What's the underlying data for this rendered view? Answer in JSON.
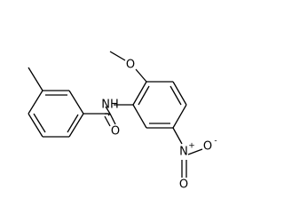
{
  "atoms": [
    {
      "label": "O"
    },
    {
      "label": "NH"
    },
    {
      "label": "O"
    },
    {
      "label": "N"
    },
    {
      "label": "+"
    },
    {
      "label": "O"
    },
    {
      "label": "-"
    },
    {
      "label": "O"
    }
  ]
}
